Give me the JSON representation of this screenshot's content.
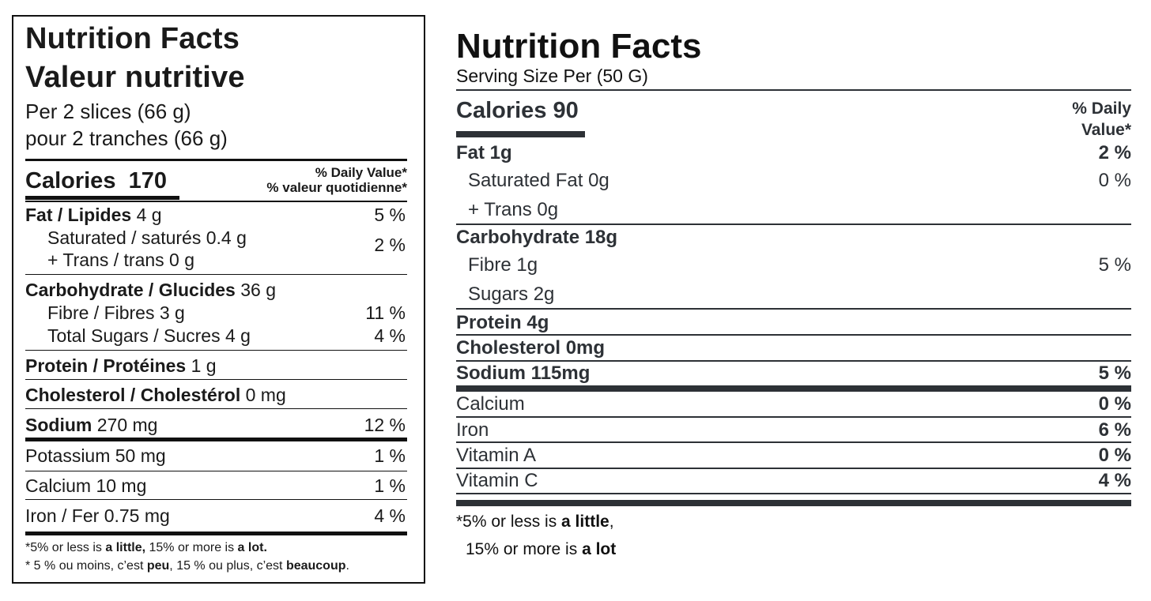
{
  "left": {
    "title_en": "Nutrition Facts",
    "title_fr": "Valeur nutritive",
    "serving_en": "Per 2 slices (66 g)",
    "serving_fr": "pour 2 tranches (66 g)",
    "calories_label": "Calories",
    "calories_value": "170",
    "dv_en": "% Daily Value*",
    "dv_fr": "% valeur quotidienne*",
    "rows": [
      {
        "bold": "Fat / Lipides",
        "rest": " 4 g",
        "pct": "5 %"
      },
      {
        "bold": "",
        "rest": "Saturated / saturés 0.4 g",
        "pct": ""
      },
      {
        "bold": "",
        "rest": "+ Trans / trans 0 g",
        "pct": "2 %"
      },
      {
        "bold": "Carbohydrate / Glucides",
        "rest": " 36 g",
        "pct": ""
      },
      {
        "bold": "",
        "rest": "Fibre / Fibres 3 g",
        "pct": "11 %"
      },
      {
        "bold": "",
        "rest": "Total Sugars / Sucres 4 g",
        "pct": "4 %"
      },
      {
        "bold": "Protein / Protéines",
        "rest": " 1 g",
        "pct": ""
      },
      {
        "bold": "Cholesterol / Cholestérol",
        "rest": " 0 mg",
        "pct": ""
      },
      {
        "bold": "Sodium",
        "rest": " 270 mg",
        "pct": "12 %"
      },
      {
        "bold": "",
        "rest": "Potassium 50 mg",
        "pct": "1 %"
      },
      {
        "bold": "",
        "rest": "Calcium 10 mg",
        "pct": "1 %"
      },
      {
        "bold": "",
        "rest": "Iron / Fer 0.75 mg",
        "pct": "4 %"
      }
    ],
    "footnote_en": {
      "a": "*5% or less is ",
      "b": "a little,",
      "c": " 15% or more is ",
      "d": "a lot."
    },
    "footnote_fr": {
      "a": "* 5 % ou moins, c’est ",
      "b": "peu",
      "c": ", 15 % ou plus, c’est ",
      "d": "beaucoup",
      "e": "."
    }
  },
  "right": {
    "title": "Nutrition Facts",
    "serving": "Serving Size Per (50 G)",
    "calories": "Calories 90",
    "dv_line1": "% Daily",
    "dv_line2": "Value*",
    "rows": [
      {
        "label": "Fat 1g",
        "pct": "2 %"
      },
      {
        "label": "Saturated Fat 0g",
        "pct": "0 %"
      },
      {
        "label": "+ Trans 0g",
        "pct": ""
      },
      {
        "label": "Carbohydrate 18g",
        "pct": ""
      },
      {
        "label": "Fibre 1g",
        "pct": "5 %"
      },
      {
        "label": "Sugars 2g",
        "pct": ""
      },
      {
        "label": "Protein 4g",
        "pct": ""
      },
      {
        "label": "Cholesterol 0mg",
        "pct": ""
      },
      {
        "label": "Sodium 115mg",
        "pct": "5 %"
      },
      {
        "label": "Calcium",
        "pct": "0 %"
      },
      {
        "label": "Iron",
        "pct": "6 %"
      },
      {
        "label": "Vitamin A",
        "pct": "0 %"
      },
      {
        "label": "Vitamin C",
        "pct": "4 %"
      }
    ],
    "footnote1": {
      "a": "*5% or less is ",
      "b": "a little",
      "c": ","
    },
    "footnote2": {
      "a": "15% or more is ",
      "b": "a lot"
    }
  }
}
